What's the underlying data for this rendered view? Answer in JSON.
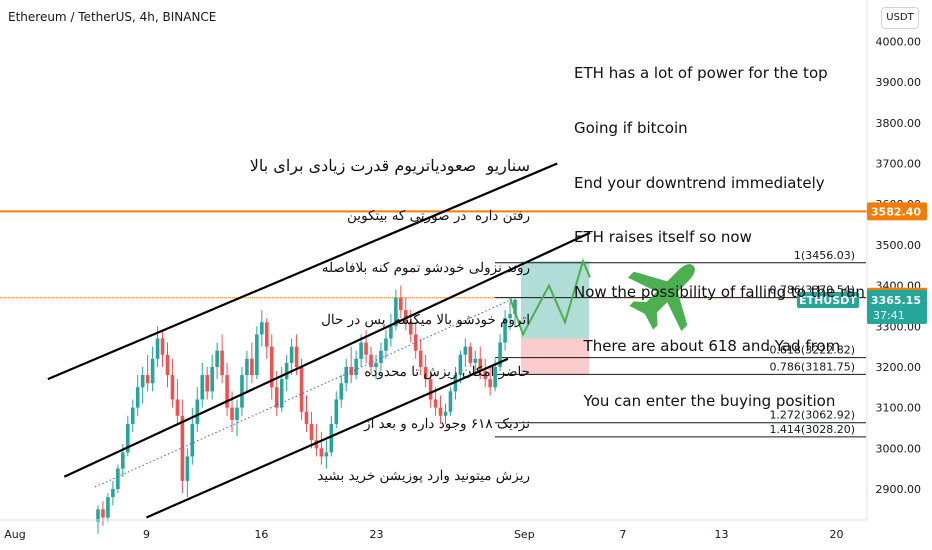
{
  "header": {
    "symbol_title": "Ethereum / TetherUS, 4h, BINANCE",
    "currency_button": "USDT"
  },
  "colors": {
    "up": "#26a69a",
    "down": "#ef5350",
    "orange": "#f57c00",
    "tp_zone": "#a7d9d2",
    "sl_zone": "#f9c6c6",
    "plane": "#4caf50",
    "projection": "#4caf50",
    "midline": "#2962ff",
    "price_tag": "#f57c00",
    "symbol_tag": "#26a69a"
  },
  "icons": {
    "plane": "airplane-icon"
  },
  "annotation_en": [
    "ETH has a lot of power for the top",
    "Going if bitcoin",
    "End your downtrend immediately",
    "ETH raises itself so now",
    "Now the possibility of falling to the ran",
    "  There are about 618 and Yad from",
    "  You can enter the buying position"
  ],
  "annotation_fa": [
    "سناریو  صعودیاتریوم قدرت زیادی برای بالا",
    "رفتن داره  در صورتی که بیتکوین",
    "روند نزولی خودشو تموم کنه بلافاصله",
    "اتروم خودشو بالا میکشه  پس در حال",
    "حاضر امکان ریزش تا محدوده",
    "نزدیک ۶۱۸ وجود داره و بعد از",
    "ریزش میتونید وارد پوزیشن خرید بشید"
  ],
  "chart_data": {
    "type": "candlestick",
    "title": "Ethereum / TetherUS, 4h, BINANCE",
    "currency": "USDT",
    "x_ticks": [
      "Aug",
      "9",
      "16",
      "23",
      "Sep",
      "7",
      "13",
      "20"
    ],
    "y_ticks": [
      2900,
      3000,
      3100,
      3200,
      3300,
      3400,
      3500,
      3600,
      3700,
      3800,
      3900,
      4000
    ],
    "ylim": [
      2820,
      4060
    ],
    "grid": false,
    "price_labels": [
      {
        "label": "3582.40",
        "value": 3582.4,
        "role": "horizontal-level"
      },
      {
        "label": "3367.56",
        "value": 3367.56,
        "role": "last-price-orange"
      },
      {
        "label": "ETHUSDT",
        "value": 3365.15,
        "role": "symbol"
      },
      {
        "label": "3365.15",
        "value": 3365.15,
        "role": "last-price"
      },
      {
        "label": "37:41",
        "value": 3365.15,
        "role": "countdown"
      }
    ],
    "fib_levels": [
      {
        "label": "1(3456.03)",
        "value": 3456.03
      },
      {
        "label": "0.786(3370.54)",
        "value": 3370.54
      },
      {
        "label": "0.618(3222.82)",
        "value": 3222.82
      },
      {
        "label": "0.786(3181.75)",
        "value": 3181.75
      },
      {
        "label": "1.272(3062.92)",
        "value": 3062.92
      },
      {
        "label": "1.414(3028.20)",
        "value": 3028.2
      }
    ],
    "horizontal_levels": [
      3582.4,
      3370
    ],
    "position": {
      "entry": 3270,
      "target": 3460,
      "stop": 3180
    },
    "projection_path": [
      [
        0,
        3370
      ],
      [
        1,
        3280
      ],
      [
        2,
        3400
      ],
      [
        3,
        3310
      ],
      [
        4,
        3460
      ],
      [
        5,
        3420
      ]
    ],
    "channel": {
      "upper": {
        "from": [
          "Aug 3",
          3170
        ],
        "to": [
          "Sep 3",
          3700
        ]
      },
      "middle": {
        "from": [
          "Aug 4",
          2930
        ],
        "to": [
          "Sep 5",
          3530
        ]
      },
      "lower": {
        "from": [
          "Aug 9",
          2830
        ],
        "to": [
          "Aug 31",
          3220
        ]
      }
    },
    "candles": [
      [
        2820,
        2860,
        2790,
        2850
      ],
      [
        2850,
        2870,
        2810,
        2830
      ],
      [
        2830,
        2890,
        2820,
        2880
      ],
      [
        2880,
        2920,
        2860,
        2900
      ],
      [
        2900,
        2960,
        2890,
        2950
      ],
      [
        2950,
        3010,
        2930,
        2990
      ],
      [
        2990,
        3080,
        2980,
        3060
      ],
      [
        3060,
        3120,
        3040,
        3100
      ],
      [
        3100,
        3180,
        3080,
        3150
      ],
      [
        3150,
        3200,
        3110,
        3180
      ],
      [
        3180,
        3230,
        3140,
        3160
      ],
      [
        3160,
        3250,
        3140,
        3220
      ],
      [
        3220,
        3300,
        3200,
        3270
      ],
      [
        3270,
        3290,
        3200,
        3230
      ],
      [
        3230,
        3260,
        3150,
        3180
      ],
      [
        3180,
        3220,
        3100,
        3120
      ],
      [
        3120,
        3170,
        3060,
        3080
      ],
      [
        3080,
        3120,
        2890,
        2920
      ],
      [
        2920,
        3000,
        2880,
        2980
      ],
      [
        2980,
        3100,
        2960,
        3060
      ],
      [
        3060,
        3150,
        3040,
        3120
      ],
      [
        3120,
        3210,
        3100,
        3180
      ],
      [
        3180,
        3200,
        3120,
        3140
      ],
      [
        3140,
        3230,
        3120,
        3200
      ],
      [
        3200,
        3260,
        3170,
        3240
      ],
      [
        3240,
        3280,
        3160,
        3180
      ],
      [
        3180,
        3210,
        3080,
        3100
      ],
      [
        3100,
        3140,
        3040,
        3070
      ],
      [
        3070,
        3120,
        3030,
        3100
      ],
      [
        3100,
        3200,
        3080,
        3180
      ],
      [
        3180,
        3240,
        3140,
        3220
      ],
      [
        3220,
        3260,
        3160,
        3180
      ],
      [
        3180,
        3300,
        3170,
        3280
      ],
      [
        3280,
        3340,
        3250,
        3310
      ],
      [
        3310,
        3320,
        3220,
        3250
      ],
      [
        3250,
        3280,
        3120,
        3150
      ],
      [
        3150,
        3190,
        3080,
        3100
      ],
      [
        3100,
        3200,
        3090,
        3170
      ],
      [
        3170,
        3230,
        3140,
        3210
      ],
      [
        3210,
        3270,
        3180,
        3250
      ],
      [
        3250,
        3280,
        3180,
        3200
      ],
      [
        3200,
        3220,
        3070,
        3090
      ],
      [
        3090,
        3130,
        3040,
        3060
      ],
      [
        3060,
        3090,
        3000,
        3020
      ],
      [
        3020,
        3060,
        2980,
        3000
      ],
      [
        3000,
        3040,
        2960,
        2980
      ],
      [
        2980,
        3020,
        2950,
        2990
      ],
      [
        2990,
        3080,
        2980,
        3060
      ],
      [
        3060,
        3140,
        3050,
        3120
      ],
      [
        3120,
        3180,
        3100,
        3160
      ],
      [
        3160,
        3220,
        3140,
        3200
      ],
      [
        3200,
        3250,
        3160,
        3180
      ],
      [
        3180,
        3240,
        3170,
        3220
      ],
      [
        3220,
        3280,
        3200,
        3260
      ],
      [
        3260,
        3290,
        3210,
        3230
      ],
      [
        3230,
        3250,
        3180,
        3200
      ],
      [
        3200,
        3230,
        3170,
        3210
      ],
      [
        3210,
        3260,
        3190,
        3240
      ],
      [
        3240,
        3290,
        3220,
        3270
      ],
      [
        3270,
        3330,
        3250,
        3300
      ],
      [
        3300,
        3390,
        3290,
        3370
      ],
      [
        3370,
        3400,
        3320,
        3340
      ],
      [
        3340,
        3370,
        3290,
        3310
      ],
      [
        3310,
        3340,
        3260,
        3280
      ],
      [
        3280,
        3310,
        3220,
        3240
      ],
      [
        3240,
        3270,
        3180,
        3200
      ],
      [
        3200,
        3230,
        3150,
        3170
      ],
      [
        3170,
        3190,
        3100,
        3120
      ],
      [
        3120,
        3150,
        3080,
        3100
      ],
      [
        3100,
        3130,
        3060,
        3080
      ],
      [
        3080,
        3110,
        3060,
        3090
      ],
      [
        3090,
        3150,
        3080,
        3140
      ],
      [
        3140,
        3200,
        3120,
        3180
      ],
      [
        3180,
        3240,
        3160,
        3230
      ],
      [
        3230,
        3270,
        3200,
        3250
      ],
      [
        3250,
        3260,
        3200,
        3210
      ],
      [
        3210,
        3240,
        3180,
        3220
      ],
      [
        3220,
        3250,
        3170,
        3190
      ],
      [
        3190,
        3220,
        3150,
        3170
      ],
      [
        3170,
        3200,
        3130,
        3150
      ],
      [
        3150,
        3220,
        3140,
        3200
      ],
      [
        3200,
        3280,
        3190,
        3260
      ],
      [
        3260,
        3340,
        3240,
        3320
      ],
      [
        3320,
        3360,
        3290,
        3330
      ],
      [
        3330,
        3370,
        3300,
        3365
      ]
    ]
  }
}
